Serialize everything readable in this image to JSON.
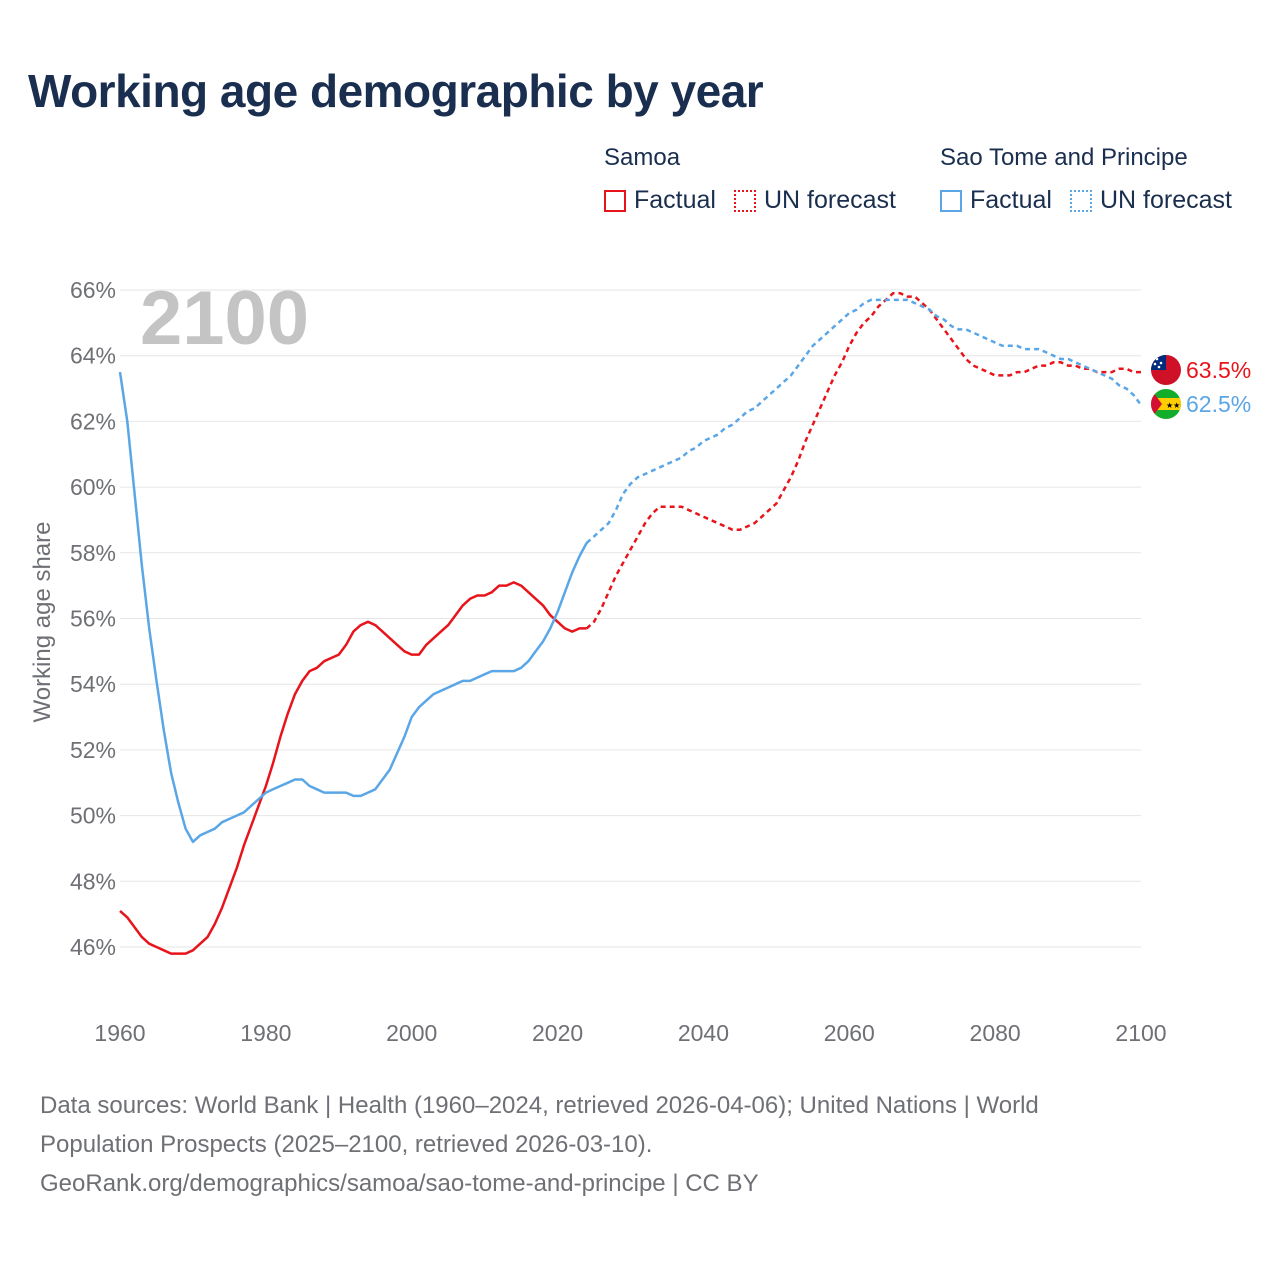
{
  "title": "Working age demographic by year",
  "legend": {
    "groups": [
      {
        "name": "Samoa",
        "factual_label": "Factual",
        "forecast_label": "UN forecast",
        "color": "#e8141b"
      },
      {
        "name": "Sao Tome and Principe",
        "factual_label": "Factual",
        "forecast_label": "UN forecast",
        "color": "#5aa6e6"
      }
    ]
  },
  "footer": {
    "line1": "Data sources: World Bank | Health (1960–2024, retrieved 2026-04-06); United Nations | World",
    "line2": "Population Prospects (2025–2100, retrieved 2026-03-10).",
    "line3": "GeoRank.org/demographics/samoa/sao-tome-and-principe | CC BY"
  },
  "chart_data": {
    "type": "line",
    "title": "Working age demographic by year",
    "xlabel": "",
    "ylabel": "Working age share",
    "xlim": [
      1960,
      2100
    ],
    "ylim": [
      45,
      67
    ],
    "x_ticks": [
      1960,
      1980,
      2000,
      2020,
      2040,
      2060,
      2080,
      2100
    ],
    "x_tick_labels": [
      "1960",
      "1980",
      "2000",
      "2020",
      "2040",
      "2060",
      "2080",
      "2100"
    ],
    "y_ticks": [
      46,
      48,
      50,
      52,
      54,
      56,
      58,
      60,
      62,
      64,
      66
    ],
    "y_tick_labels": [
      "46%",
      "48%",
      "50%",
      "52%",
      "54%",
      "56%",
      "58%",
      "60%",
      "62%",
      "64%",
      "66%"
    ],
    "year_watermark": "2100",
    "factual_end_year": 2024,
    "series": [
      {
        "name": "Samoa",
        "color": "#e8141b",
        "end_label": "63.5%",
        "flag": "samoa-flag-icon",
        "points": [
          [
            1960,
            47.1
          ],
          [
            1961,
            46.9
          ],
          [
            1962,
            46.6
          ],
          [
            1963,
            46.3
          ],
          [
            1964,
            46.1
          ],
          [
            1965,
            46.0
          ],
          [
            1966,
            45.9
          ],
          [
            1967,
            45.8
          ],
          [
            1968,
            45.8
          ],
          [
            1969,
            45.8
          ],
          [
            1970,
            45.9
          ],
          [
            1971,
            46.1
          ],
          [
            1972,
            46.3
          ],
          [
            1973,
            46.7
          ],
          [
            1974,
            47.2
          ],
          [
            1975,
            47.8
          ],
          [
            1976,
            48.4
          ],
          [
            1977,
            49.1
          ],
          [
            1978,
            49.7
          ],
          [
            1979,
            50.3
          ],
          [
            1980,
            50.9
          ],
          [
            1981,
            51.6
          ],
          [
            1982,
            52.4
          ],
          [
            1983,
            53.1
          ],
          [
            1984,
            53.7
          ],
          [
            1985,
            54.1
          ],
          [
            1986,
            54.4
          ],
          [
            1987,
            54.5
          ],
          [
            1988,
            54.7
          ],
          [
            1989,
            54.8
          ],
          [
            1990,
            54.9
          ],
          [
            1991,
            55.2
          ],
          [
            1992,
            55.6
          ],
          [
            1993,
            55.8
          ],
          [
            1994,
            55.9
          ],
          [
            1995,
            55.8
          ],
          [
            1996,
            55.6
          ],
          [
            1997,
            55.4
          ],
          [
            1998,
            55.2
          ],
          [
            1999,
            55.0
          ],
          [
            2000,
            54.9
          ],
          [
            2001,
            54.9
          ],
          [
            2002,
            55.2
          ],
          [
            2003,
            55.4
          ],
          [
            2004,
            55.6
          ],
          [
            2005,
            55.8
          ],
          [
            2006,
            56.1
          ],
          [
            2007,
            56.4
          ],
          [
            2008,
            56.6
          ],
          [
            2009,
            56.7
          ],
          [
            2010,
            56.7
          ],
          [
            2011,
            56.8
          ],
          [
            2012,
            57.0
          ],
          [
            2013,
            57.0
          ],
          [
            2014,
            57.1
          ],
          [
            2015,
            57.0
          ],
          [
            2016,
            56.8
          ],
          [
            2017,
            56.6
          ],
          [
            2018,
            56.4
          ],
          [
            2019,
            56.1
          ],
          [
            2020,
            55.9
          ],
          [
            2021,
            55.7
          ],
          [
            2022,
            55.6
          ],
          [
            2023,
            55.7
          ],
          [
            2024,
            55.7
          ],
          [
            2025,
            55.9
          ],
          [
            2026,
            56.3
          ],
          [
            2027,
            56.8
          ],
          [
            2028,
            57.3
          ],
          [
            2029,
            57.7
          ],
          [
            2030,
            58.1
          ],
          [
            2031,
            58.5
          ],
          [
            2032,
            58.9
          ],
          [
            2033,
            59.2
          ],
          [
            2034,
            59.4
          ],
          [
            2035,
            59.4
          ],
          [
            2036,
            59.4
          ],
          [
            2037,
            59.4
          ],
          [
            2038,
            59.3
          ],
          [
            2039,
            59.2
          ],
          [
            2040,
            59.1
          ],
          [
            2041,
            59.0
          ],
          [
            2042,
            58.9
          ],
          [
            2043,
            58.8
          ],
          [
            2044,
            58.7
          ],
          [
            2045,
            58.7
          ],
          [
            2046,
            58.8
          ],
          [
            2047,
            58.9
          ],
          [
            2048,
            59.1
          ],
          [
            2049,
            59.3
          ],
          [
            2050,
            59.5
          ],
          [
            2051,
            59.9
          ],
          [
            2052,
            60.3
          ],
          [
            2053,
            60.8
          ],
          [
            2054,
            61.4
          ],
          [
            2055,
            61.9
          ],
          [
            2056,
            62.4
          ],
          [
            2057,
            62.9
          ],
          [
            2058,
            63.4
          ],
          [
            2059,
            63.8
          ],
          [
            2060,
            64.3
          ],
          [
            2061,
            64.7
          ],
          [
            2062,
            65.0
          ],
          [
            2063,
            65.2
          ],
          [
            2064,
            65.5
          ],
          [
            2065,
            65.7
          ],
          [
            2066,
            65.9
          ],
          [
            2067,
            65.9
          ],
          [
            2068,
            65.8
          ],
          [
            2069,
            65.8
          ],
          [
            2070,
            65.6
          ],
          [
            2071,
            65.4
          ],
          [
            2072,
            65.1
          ],
          [
            2073,
            64.8
          ],
          [
            2074,
            64.5
          ],
          [
            2075,
            64.2
          ],
          [
            2076,
            63.9
          ],
          [
            2077,
            63.7
          ],
          [
            2078,
            63.6
          ],
          [
            2079,
            63.5
          ],
          [
            2080,
            63.4
          ],
          [
            2081,
            63.4
          ],
          [
            2082,
            63.4
          ],
          [
            2083,
            63.5
          ],
          [
            2084,
            63.5
          ],
          [
            2085,
            63.6
          ],
          [
            2086,
            63.7
          ],
          [
            2087,
            63.7
          ],
          [
            2088,
            63.8
          ],
          [
            2089,
            63.8
          ],
          [
            2090,
            63.7
          ],
          [
            2091,
            63.7
          ],
          [
            2092,
            63.6
          ],
          [
            2093,
            63.6
          ],
          [
            2094,
            63.5
          ],
          [
            2095,
            63.5
          ],
          [
            2096,
            63.5
          ],
          [
            2097,
            63.6
          ],
          [
            2098,
            63.6
          ],
          [
            2099,
            63.5
          ],
          [
            2100,
            63.5
          ]
        ]
      },
      {
        "name": "Sao Tome and Principe",
        "color": "#5aa6e6",
        "end_label": "62.5%",
        "flag": "sao-tome-flag-icon",
        "points": [
          [
            1960,
            63.5
          ],
          [
            1961,
            62.0
          ],
          [
            1962,
            59.8
          ],
          [
            1963,
            57.6
          ],
          [
            1964,
            55.7
          ],
          [
            1965,
            54.1
          ],
          [
            1966,
            52.6
          ],
          [
            1967,
            51.3
          ],
          [
            1968,
            50.4
          ],
          [
            1969,
            49.6
          ],
          [
            1970,
            49.2
          ],
          [
            1971,
            49.4
          ],
          [
            1972,
            49.5
          ],
          [
            1973,
            49.6
          ],
          [
            1974,
            49.8
          ],
          [
            1975,
            49.9
          ],
          [
            1976,
            50.0
          ],
          [
            1977,
            50.1
          ],
          [
            1978,
            50.3
          ],
          [
            1979,
            50.5
          ],
          [
            1980,
            50.7
          ],
          [
            1981,
            50.8
          ],
          [
            1982,
            50.9
          ],
          [
            1983,
            51.0
          ],
          [
            1984,
            51.1
          ],
          [
            1985,
            51.1
          ],
          [
            1986,
            50.9
          ],
          [
            1987,
            50.8
          ],
          [
            1988,
            50.7
          ],
          [
            1989,
            50.7
          ],
          [
            1990,
            50.7
          ],
          [
            1991,
            50.7
          ],
          [
            1992,
            50.6
          ],
          [
            1993,
            50.6
          ],
          [
            1994,
            50.7
          ],
          [
            1995,
            50.8
          ],
          [
            1996,
            51.1
          ],
          [
            1997,
            51.4
          ],
          [
            1998,
            51.9
          ],
          [
            1999,
            52.4
          ],
          [
            2000,
            53.0
          ],
          [
            2001,
            53.3
          ],
          [
            2002,
            53.5
          ],
          [
            2003,
            53.7
          ],
          [
            2004,
            53.8
          ],
          [
            2005,
            53.9
          ],
          [
            2006,
            54.0
          ],
          [
            2007,
            54.1
          ],
          [
            2008,
            54.1
          ],
          [
            2009,
            54.2
          ],
          [
            2010,
            54.3
          ],
          [
            2011,
            54.4
          ],
          [
            2012,
            54.4
          ],
          [
            2013,
            54.4
          ],
          [
            2014,
            54.4
          ],
          [
            2015,
            54.5
          ],
          [
            2016,
            54.7
          ],
          [
            2017,
            55.0
          ],
          [
            2018,
            55.3
          ],
          [
            2019,
            55.7
          ],
          [
            2020,
            56.2
          ],
          [
            2021,
            56.8
          ],
          [
            2022,
            57.4
          ],
          [
            2023,
            57.9
          ],
          [
            2024,
            58.3
          ],
          [
            2025,
            58.5
          ],
          [
            2026,
            58.7
          ],
          [
            2027,
            58.9
          ],
          [
            2028,
            59.3
          ],
          [
            2029,
            59.8
          ],
          [
            2030,
            60.1
          ],
          [
            2031,
            60.3
          ],
          [
            2032,
            60.4
          ],
          [
            2033,
            60.5
          ],
          [
            2034,
            60.6
          ],
          [
            2035,
            60.7
          ],
          [
            2036,
            60.8
          ],
          [
            2037,
            60.9
          ],
          [
            2038,
            61.1
          ],
          [
            2039,
            61.2
          ],
          [
            2040,
            61.4
          ],
          [
            2041,
            61.5
          ],
          [
            2042,
            61.6
          ],
          [
            2043,
            61.8
          ],
          [
            2044,
            61.9
          ],
          [
            2045,
            62.1
          ],
          [
            2046,
            62.3
          ],
          [
            2047,
            62.4
          ],
          [
            2048,
            62.6
          ],
          [
            2049,
            62.8
          ],
          [
            2050,
            63.0
          ],
          [
            2051,
            63.2
          ],
          [
            2052,
            63.4
          ],
          [
            2053,
            63.7
          ],
          [
            2054,
            64.0
          ],
          [
            2055,
            64.3
          ],
          [
            2056,
            64.5
          ],
          [
            2057,
            64.7
          ],
          [
            2058,
            64.9
          ],
          [
            2059,
            65.1
          ],
          [
            2060,
            65.3
          ],
          [
            2061,
            65.4
          ],
          [
            2062,
            65.6
          ],
          [
            2063,
            65.7
          ],
          [
            2064,
            65.7
          ],
          [
            2065,
            65.7
          ],
          [
            2066,
            65.7
          ],
          [
            2067,
            65.7
          ],
          [
            2068,
            65.7
          ],
          [
            2069,
            65.6
          ],
          [
            2070,
            65.5
          ],
          [
            2071,
            65.4
          ],
          [
            2072,
            65.2
          ],
          [
            2073,
            65.1
          ],
          [
            2074,
            64.9
          ],
          [
            2075,
            64.8
          ],
          [
            2076,
            64.8
          ],
          [
            2077,
            64.7
          ],
          [
            2078,
            64.6
          ],
          [
            2079,
            64.5
          ],
          [
            2080,
            64.4
          ],
          [
            2081,
            64.3
          ],
          [
            2082,
            64.3
          ],
          [
            2083,
            64.3
          ],
          [
            2084,
            64.2
          ],
          [
            2085,
            64.2
          ],
          [
            2086,
            64.2
          ],
          [
            2087,
            64.1
          ],
          [
            2088,
            64.0
          ],
          [
            2089,
            63.9
          ],
          [
            2090,
            63.9
          ],
          [
            2091,
            63.8
          ],
          [
            2092,
            63.7
          ],
          [
            2093,
            63.6
          ],
          [
            2094,
            63.5
          ],
          [
            2095,
            63.4
          ],
          [
            2096,
            63.3
          ],
          [
            2097,
            63.1
          ],
          [
            2098,
            63.0
          ],
          [
            2099,
            62.8
          ],
          [
            2100,
            62.5
          ]
        ]
      }
    ]
  }
}
